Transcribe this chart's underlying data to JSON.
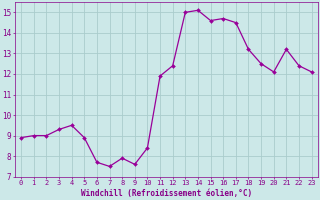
{
  "x": [
    0,
    1,
    2,
    3,
    4,
    5,
    6,
    7,
    8,
    9,
    10,
    11,
    12,
    13,
    14,
    15,
    16,
    17,
    18,
    19,
    20,
    21,
    22,
    23
  ],
  "y": [
    8.9,
    9.0,
    9.0,
    9.3,
    9.5,
    8.9,
    7.7,
    7.5,
    7.9,
    7.6,
    8.4,
    11.9,
    12.4,
    15.0,
    15.1,
    14.6,
    14.7,
    14.5,
    13.2,
    12.5,
    12.1,
    13.2,
    12.4,
    12.1
  ],
  "line_color": "#990099",
  "marker_color": "#990099",
  "bg_color": "#cce8e8",
  "grid_color": "#aacccc",
  "xlabel": "Windchill (Refroidissement éolien,°C)",
  "ylim": [
    7,
    15.5
  ],
  "xlim": [
    -0.5,
    23.5
  ],
  "yticks": [
    7,
    8,
    9,
    10,
    11,
    12,
    13,
    14,
    15
  ],
  "xticks": [
    0,
    1,
    2,
    3,
    4,
    5,
    6,
    7,
    8,
    9,
    10,
    11,
    12,
    13,
    14,
    15,
    16,
    17,
    18,
    19,
    20,
    21,
    22,
    23
  ],
  "tick_color": "#880088",
  "label_color": "#880088",
  "font_family": "monospace",
  "tick_fontsize": 5.0,
  "xlabel_fontsize": 5.5
}
